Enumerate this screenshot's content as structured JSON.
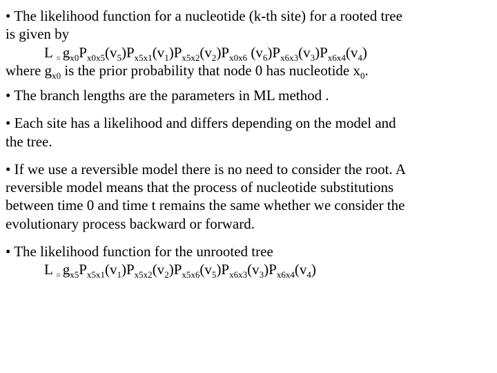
{
  "p1_line1": "• The likelihood function for a nucleotide (k-th site) for a rooted tree",
  "p1_line2": "is given by",
  "formula1": {
    "lead": "L ",
    "eq": "= ",
    "t1": "g",
    "s1": "x0",
    "t2": "P",
    "s2": "x0x5",
    "t3": "(v",
    "s3": "5",
    "t4": ")P",
    "s4": "x5x1",
    "t5": "(v",
    "s5": "1",
    "t6": ")P",
    "s6": "x5x2",
    "t7": "(v",
    "s7": "2",
    "t8": ")P",
    "s8": "x0x6",
    "t8b": " (v",
    "s8b": "6",
    "t9": ")P",
    "s9": "x6x3",
    "t10": "(v",
    "s10": "3",
    "t11": ")P",
    "s11": "x6x4",
    "t12": "(v",
    "s12": "4",
    "t13": ")"
  },
  "p1_where_a": "where g",
  "p1_where_a_sub": "x0",
  "p1_where_b": " is the prior probability that node 0 has nucleotide x",
  "p1_where_b_sub": "0",
  "p1_where_c": ".",
  "p2": "• The branch lengths are the parameters in ML method .",
  "p3_line1": "• Each site has a likelihood and differs depending on the model and",
  "p3_line2": "the tree.",
  "p4_line1": "•  If we use a reversible model there is no need to consider the root. A",
  "p4_line2": "reversible model means that the process of nucleotide substitutions",
  "p4_line3": "between time 0 and time t remains the same whether we consider the",
  "p4_line4": "evolutionary process backward or forward.",
  "p5": "• The likelihood function for the unrooted tree",
  "formula2": {
    "lead": "L ",
    "eq": "= ",
    "t1": "g",
    "s1": "x5",
    "t2": "P",
    "s2": "x5x1",
    "t3": "(v",
    "s3": "1",
    "t4": ")P",
    "s4": "x5x2",
    "t5": "(v",
    "s5": "2",
    "t6": ")P",
    "s6": "x5x6",
    "t7": "(v",
    "s7": "5",
    "t8": ")P",
    "s8": "x6x3",
    "t9": "(v",
    "s9": "3",
    "t10": ")P",
    "s10": "x6x4",
    "t11": "(v",
    "s11": "4",
    "t12": ")"
  }
}
